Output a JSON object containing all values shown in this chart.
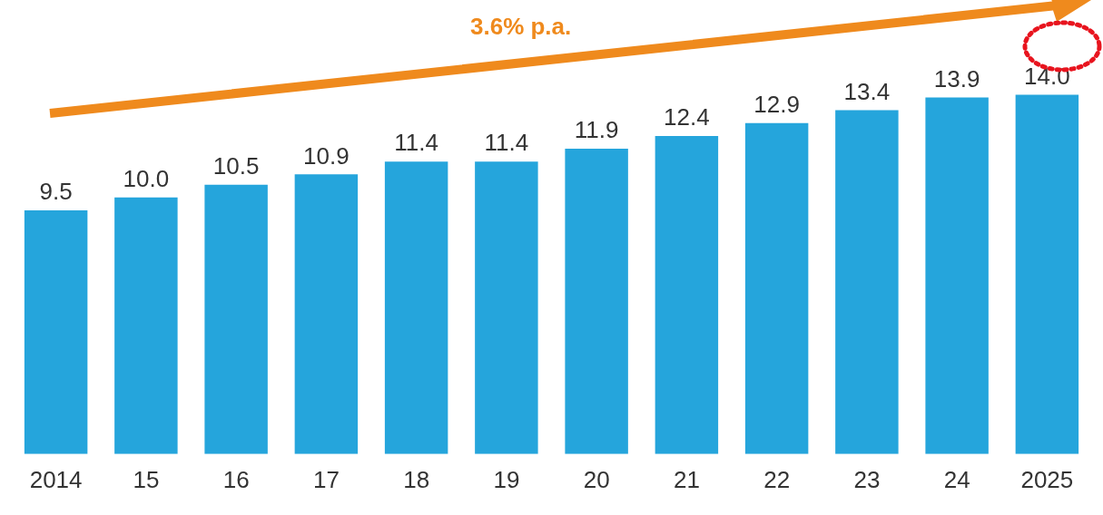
{
  "chart_data": {
    "type": "bar",
    "categories": [
      "2014",
      "15",
      "16",
      "17",
      "18",
      "19",
      "20",
      "21",
      "22",
      "23",
      "24",
      "2025"
    ],
    "values": [
      9.5,
      10.0,
      10.5,
      10.9,
      11.4,
      11.4,
      11.9,
      12.4,
      12.9,
      13.4,
      13.9,
      14.0
    ],
    "value_labels": [
      "9.5",
      "10.0",
      "10.5",
      "10.9",
      "11.4",
      "11.4",
      "11.9",
      "12.4",
      "12.9",
      "13.4",
      "13.9",
      "14.0"
    ],
    "color": "#25a5dc",
    "grid": false,
    "legend": false,
    "annotations": [
      "3.6% p.a."
    ]
  }
}
